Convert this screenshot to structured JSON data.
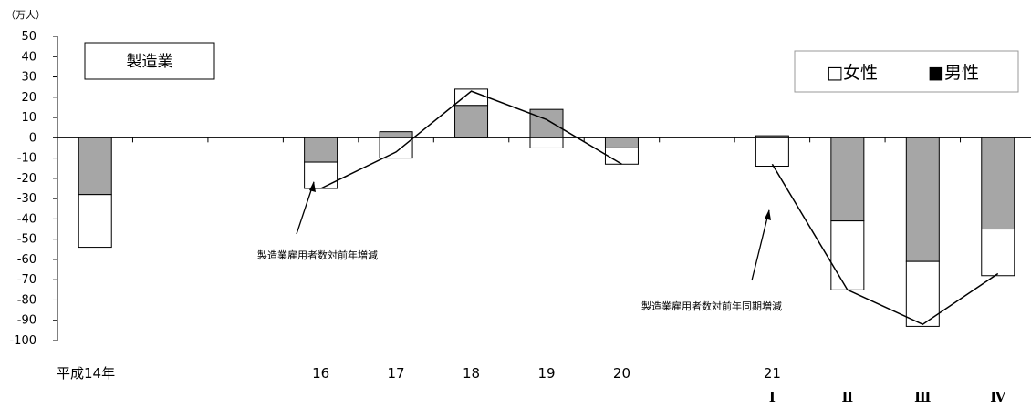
{
  "chart_data": {
    "type": "bar",
    "title": "製造業",
    "ylabel": "（万人）",
    "ylim": [
      -100,
      50
    ],
    "yticks": [
      50,
      40,
      30,
      20,
      10,
      0,
      -10,
      -20,
      -30,
      -40,
      -50,
      -60,
      -70,
      -80,
      -90,
      -100
    ],
    "categories": [
      "平成14年",
      "",
      "",
      "16",
      "17",
      "18",
      "19",
      "20",
      "",
      "21",
      "",
      "",
      ""
    ],
    "sublabels": [
      "",
      "",
      "",
      "",
      "",
      "",
      "",
      "",
      "",
      "Ⅰ",
      "Ⅱ",
      "Ⅲ",
      "Ⅳ"
    ],
    "series": [
      {
        "name": "男性",
        "type": "bar",
        "color": "#a6a6a6",
        "values": [
          -28,
          null,
          null,
          -12,
          3,
          16,
          14,
          -5,
          null,
          1,
          -41,
          -61,
          -45
        ]
      },
      {
        "name": "女性",
        "type": "bar",
        "color": "#ffffff",
        "values": [
          -26,
          null,
          null,
          -13,
          -10,
          8,
          -5,
          -8,
          null,
          -14,
          -34,
          -32,
          -23
        ]
      },
      {
        "name": "製造業雇用者数対前年増減",
        "type": "line",
        "values": [
          null,
          null,
          null,
          -25,
          -7,
          23,
          9,
          -13,
          null,
          null,
          null,
          null,
          null
        ]
      },
      {
        "name": "製造業雇用者数対前年同期増減",
        "type": "line",
        "values": [
          null,
          null,
          null,
          null,
          null,
          null,
          null,
          null,
          null,
          -13,
          -75,
          -92,
          -67
        ]
      }
    ],
    "legend": {
      "position": "top-right",
      "items": [
        "□女性",
        "■男性"
      ]
    },
    "annotations": [
      "製造業雇用者数対前年増減",
      "製造業雇用者数対前年同期増減"
    ],
    "grid": false
  }
}
